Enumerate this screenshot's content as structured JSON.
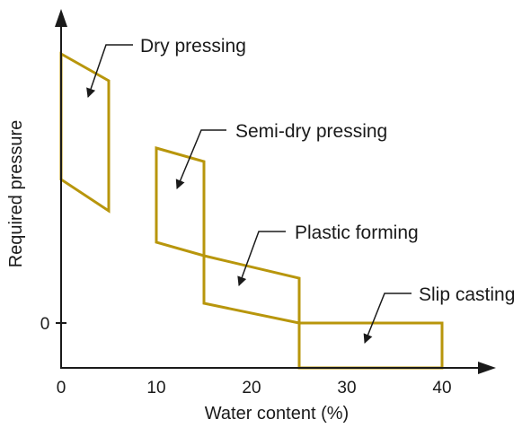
{
  "chart_data": {
    "type": "area",
    "xlabel": "Water content (%)",
    "ylabel": "Required pressure",
    "xlim": [
      0,
      40
    ],
    "x_ticks": [
      0,
      10,
      20,
      30,
      40
    ],
    "y_ticks": [
      0
    ],
    "grid": false,
    "colors": {
      "region": "#b8960c",
      "axis": "#1a1a1a"
    },
    "series": [
      {
        "name": "Dry pressing",
        "water_content_range": [
          0,
          5
        ],
        "polygon": [
          [
            0,
            3.0
          ],
          [
            5,
            2.7
          ],
          [
            5,
            1.25
          ],
          [
            0,
            1.6
          ]
        ]
      },
      {
        "name": "Semi-dry pressing",
        "water_content_range": [
          10,
          15
        ],
        "polygon": [
          [
            10,
            1.95
          ],
          [
            15,
            1.8
          ],
          [
            15,
            0.75
          ],
          [
            10,
            0.9
          ]
        ]
      },
      {
        "name": "Plastic forming",
        "water_content_range": [
          15,
          25
        ],
        "polygon": [
          [
            15,
            0.75
          ],
          [
            25,
            0.5
          ],
          [
            25,
            0
          ],
          [
            15,
            0.22
          ]
        ]
      },
      {
        "name": "Slip casting",
        "water_content_range": [
          25,
          40
        ],
        "polygon": [
          [
            25,
            0
          ],
          [
            40,
            0
          ],
          [
            40,
            -0.5
          ],
          [
            25,
            -0.5
          ]
        ]
      }
    ]
  }
}
